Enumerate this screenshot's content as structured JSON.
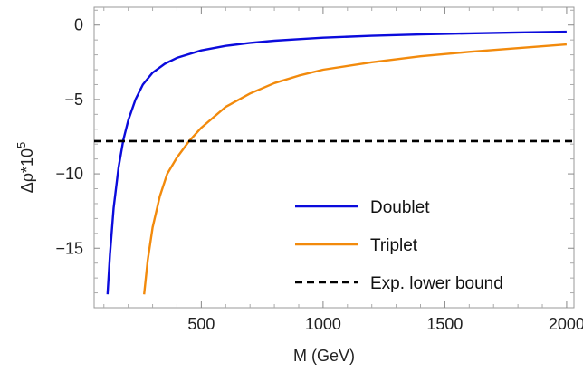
{
  "chart_data": {
    "type": "line",
    "title": "",
    "xlabel": "M (GeV)",
    "ylabel_base": "Δρ*10",
    "ylabel_exp": "5",
    "xlim": [
      60,
      2030
    ],
    "ylim": [
      -19,
      1.2
    ],
    "x_ticks": [
      500,
      1000,
      1500,
      2000
    ],
    "x_tick_labels": [
      "500",
      "1000",
      "1500",
      "2000"
    ],
    "y_ticks": [
      0,
      -5,
      -10,
      -15
    ],
    "y_tick_labels": [
      "0",
      "−5",
      "−10",
      "−15"
    ],
    "grid": false,
    "legend_position": "bottom-right",
    "series": [
      {
        "name": "Doublet",
        "color": "#0b0bdc",
        "dash": "solid",
        "points": [
          [
            115,
            -18.1
          ],
          [
            125,
            -15.4
          ],
          [
            140,
            -12.3
          ],
          [
            160,
            -9.6
          ],
          [
            180,
            -7.7
          ],
          [
            200,
            -6.4
          ],
          [
            230,
            -5.0
          ],
          [
            260,
            -4.0
          ],
          [
            300,
            -3.2
          ],
          [
            350,
            -2.6
          ],
          [
            400,
            -2.2
          ],
          [
            500,
            -1.7
          ],
          [
            600,
            -1.4
          ],
          [
            700,
            -1.2
          ],
          [
            800,
            -1.05
          ],
          [
            900,
            -0.95
          ],
          [
            1000,
            -0.85
          ],
          [
            1200,
            -0.72
          ],
          [
            1400,
            -0.63
          ],
          [
            1600,
            -0.56
          ],
          [
            1800,
            -0.5
          ],
          [
            2000,
            -0.45
          ]
        ]
      },
      {
        "name": "Triplet",
        "color": "#f28a0c",
        "dash": "solid",
        "points": [
          [
            265,
            -18.1
          ],
          [
            280,
            -15.8
          ],
          [
            300,
            -13.6
          ],
          [
            330,
            -11.5
          ],
          [
            360,
            -10.0
          ],
          [
            400,
            -8.9
          ],
          [
            450,
            -7.8
          ],
          [
            500,
            -6.9
          ],
          [
            600,
            -5.5
          ],
          [
            700,
            -4.6
          ],
          [
            800,
            -3.9
          ],
          [
            900,
            -3.4
          ],
          [
            1000,
            -3.0
          ],
          [
            1200,
            -2.5
          ],
          [
            1400,
            -2.1
          ],
          [
            1600,
            -1.8
          ],
          [
            1800,
            -1.55
          ],
          [
            2000,
            -1.3
          ]
        ]
      },
      {
        "name": "Exp. lower bound",
        "color": "#000000",
        "dash": "dashed",
        "points": [
          [
            60,
            -7.8
          ],
          [
            2030,
            -7.8
          ]
        ]
      }
    ]
  }
}
